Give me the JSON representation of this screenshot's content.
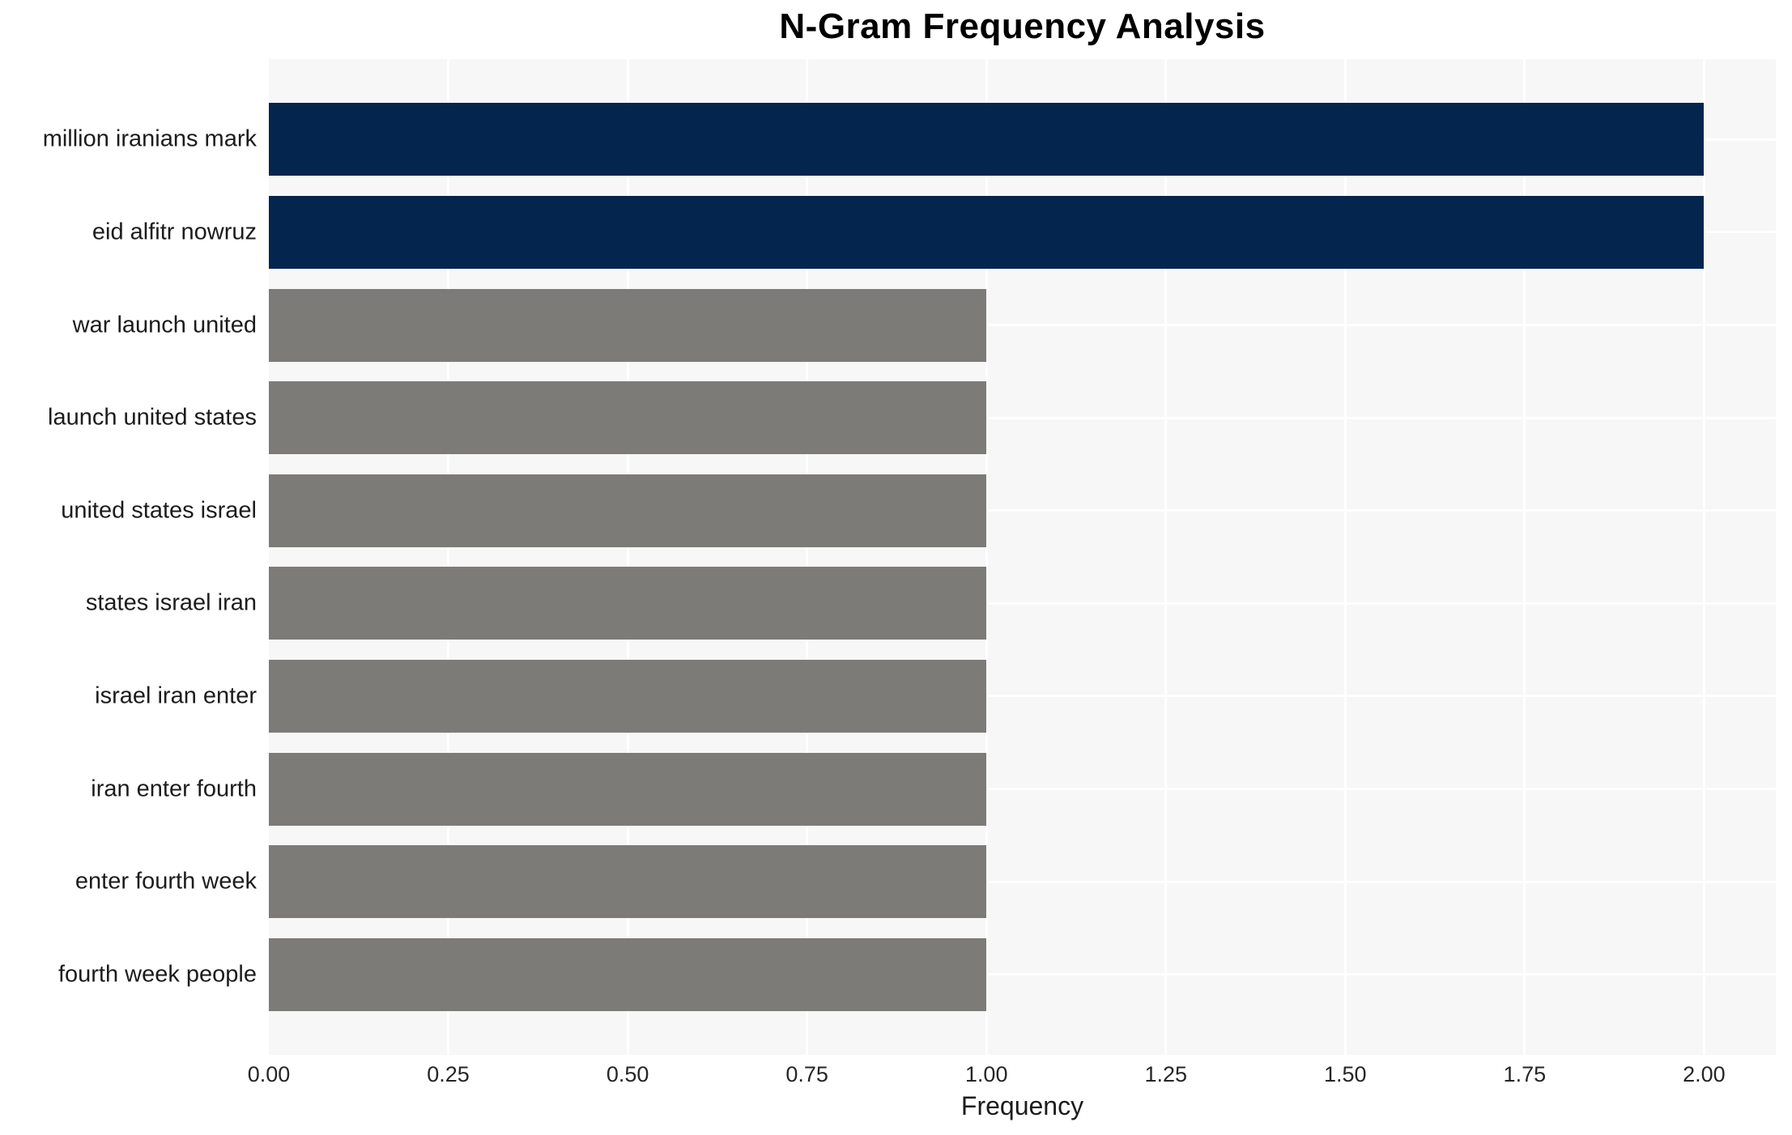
{
  "chart_data": {
    "type": "bar",
    "orientation": "horizontal",
    "title": "N-Gram Frequency Analysis",
    "xlabel": "Frequency",
    "ylabel": "",
    "categories": [
      "million iranians mark",
      "eid alfitr nowruz",
      "war launch united",
      "launch united states",
      "united states israel",
      "states israel iran",
      "israel iran enter",
      "iran enter fourth",
      "enter fourth week",
      "fourth week people"
    ],
    "values": [
      2,
      2,
      1,
      1,
      1,
      1,
      1,
      1,
      1,
      1
    ],
    "bar_colors": [
      "#03254e",
      "#03254e",
      "#7c7b78",
      "#7c7b78",
      "#7c7b78",
      "#7c7b78",
      "#7c7b78",
      "#7c7b78",
      "#7c7b78",
      "#7c7b78"
    ],
    "xlim": [
      0,
      2.1
    ],
    "xticks": [
      "0.00",
      "0.25",
      "0.50",
      "0.75",
      "1.00",
      "1.25",
      "1.50",
      "1.75",
      "2.00"
    ],
    "xtick_values": [
      0,
      0.25,
      0.5,
      0.75,
      1.0,
      1.25,
      1.5,
      1.75,
      2.0
    ],
    "grid": "on",
    "legend": "none",
    "plot_bg_color": "#f7f7f7",
    "grid_color": "#ffffff",
    "figure_bg_color": "#ffffff"
  }
}
